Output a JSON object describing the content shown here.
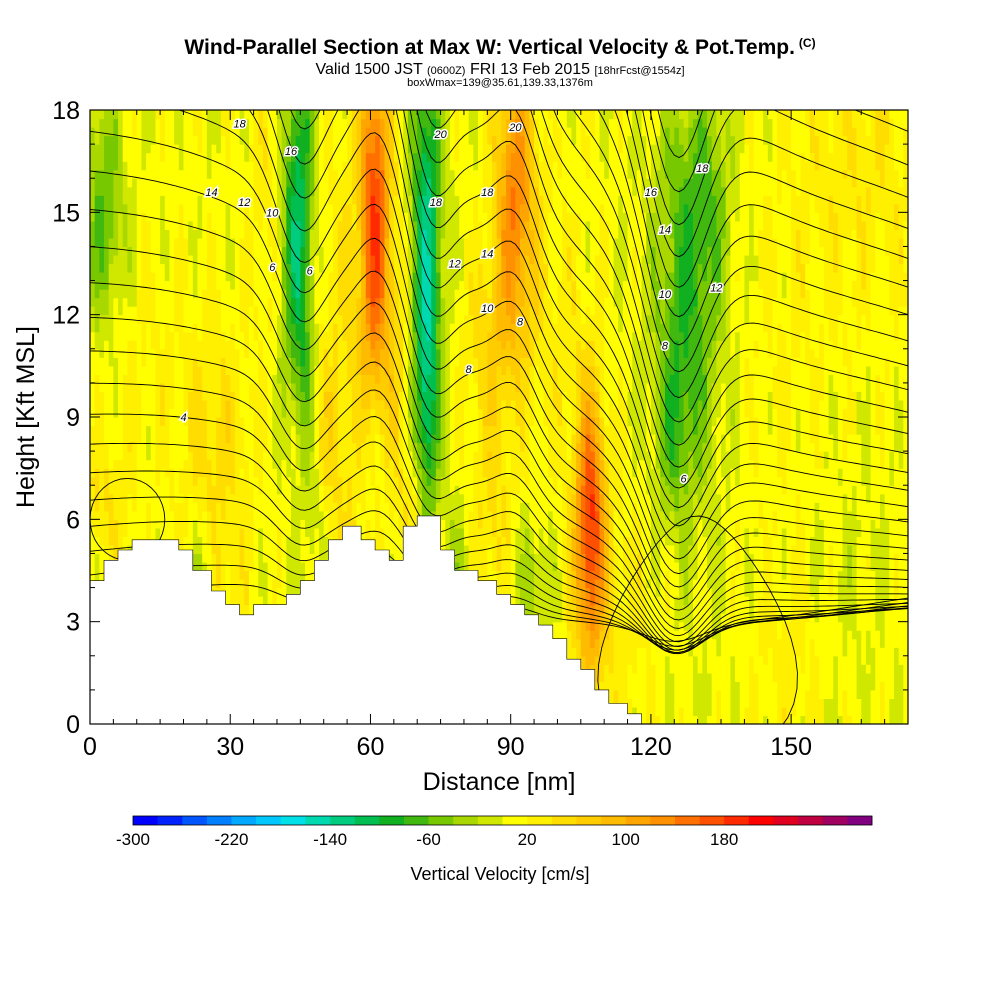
{
  "title": "Wind-Parallel Section at Max W: Vertical Velocity & Pot.Temp.",
  "copyright_mark": "(C)",
  "subtitle_main": "Valid 1500 JST",
  "subtitle_utc": "(0600Z)",
  "subtitle_date": "FRI 13 Feb 2015",
  "subtitle_fcst": "[18hrFcst@1554z]",
  "subtitle2": "boxWmax=139@35.61,139.33,1376m",
  "chart_data": {
    "type": "heatmap",
    "xlabel": "Distance [nm]",
    "ylabel": "Height [Kft MSL]",
    "xlim": [
      0,
      175
    ],
    "ylim": [
      0,
      18
    ],
    "x_ticks": [
      "0",
      "30",
      "60",
      "90",
      "120",
      "150"
    ],
    "y_ticks": [
      "0",
      "3",
      "6",
      "9",
      "12",
      "15",
      "18"
    ],
    "colorbar": {
      "label": "Vertical Velocity [cm/s]",
      "tick_labels": [
        "-300",
        "-220",
        "-140",
        "-60",
        "20",
        "100",
        "180"
      ],
      "colors": [
        "#0000ff",
        "#0022ff",
        "#0055ff",
        "#0080ff",
        "#00a8ff",
        "#00c8ff",
        "#00e0e8",
        "#00d8b0",
        "#00cc80",
        "#00be50",
        "#10b020",
        "#40b810",
        "#78c800",
        "#a8d800",
        "#d0e800",
        "#ffff00",
        "#fff000",
        "#ffdd00",
        "#ffcc00",
        "#ffbb00",
        "#ffa500",
        "#ff9000",
        "#ff7000",
        "#ff5000",
        "#ff2a00",
        "#ff0000",
        "#e00020",
        "#c00040",
        "#a00060",
        "#800080"
      ]
    },
    "terrain_profile": [
      [
        0,
        4.2
      ],
      [
        3,
        4.2
      ],
      [
        3,
        4.8
      ],
      [
        6,
        4.8
      ],
      [
        6,
        5.1
      ],
      [
        9,
        5.1
      ],
      [
        9,
        5.4
      ],
      [
        19,
        5.4
      ],
      [
        19,
        5.1
      ],
      [
        22,
        5.1
      ],
      [
        22,
        4.5
      ],
      [
        26,
        4.5
      ],
      [
        26,
        3.9
      ],
      [
        29,
        3.9
      ],
      [
        29,
        3.5
      ],
      [
        32,
        3.5
      ],
      [
        32,
        3.2
      ],
      [
        35,
        3.2
      ],
      [
        35,
        3.5
      ],
      [
        42,
        3.5
      ],
      [
        42,
        3.8
      ],
      [
        45,
        3.8
      ],
      [
        45,
        4.2
      ],
      [
        48,
        4.2
      ],
      [
        48,
        4.8
      ],
      [
        51,
        4.8
      ],
      [
        51,
        5.4
      ],
      [
        54,
        5.4
      ],
      [
        54,
        5.8
      ],
      [
        58,
        5.8
      ],
      [
        58,
        5.4
      ],
      [
        61,
        5.4
      ],
      [
        61,
        5.1
      ],
      [
        64,
        5.1
      ],
      [
        64,
        4.8
      ],
      [
        67,
        4.8
      ],
      [
        67,
        5.8
      ],
      [
        70,
        5.8
      ],
      [
        70,
        6.1
      ],
      [
        75,
        6.1
      ],
      [
        75,
        5.1
      ],
      [
        78,
        5.1
      ],
      [
        78,
        4.5
      ],
      [
        83,
        4.5
      ],
      [
        83,
        4.2
      ],
      [
        87,
        4.2
      ],
      [
        87,
        3.8
      ],
      [
        90,
        3.8
      ],
      [
        90,
        3.5
      ],
      [
        93,
        3.5
      ],
      [
        93,
        3.2
      ],
      [
        96,
        3.2
      ],
      [
        96,
        2.9
      ],
      [
        99,
        2.9
      ],
      [
        99,
        2.5
      ],
      [
        102,
        2.5
      ],
      [
        102,
        1.9
      ],
      [
        105,
        1.9
      ],
      [
        105,
        1.6
      ],
      [
        108,
        1.6
      ],
      [
        108,
        1.0
      ],
      [
        111,
        1.0
      ],
      [
        111,
        0.6
      ],
      [
        115,
        0.6
      ],
      [
        115,
        0.3
      ],
      [
        118,
        0.3
      ],
      [
        118,
        0
      ]
    ],
    "theta_contour_labels": [
      {
        "x": 20,
        "y": 9.0,
        "label": "4"
      },
      {
        "x": 39,
        "y": 13.4,
        "label": "6"
      },
      {
        "x": 47,
        "y": 13.3,
        "label": "6"
      },
      {
        "x": 39,
        "y": 15.0,
        "label": "10"
      },
      {
        "x": 33,
        "y": 15.3,
        "label": "12"
      },
      {
        "x": 26,
        "y": 15.6,
        "label": "14"
      },
      {
        "x": 43,
        "y": 16.8,
        "label": "16"
      },
      {
        "x": 32,
        "y": 17.6,
        "label": "18"
      },
      {
        "x": 75,
        "y": 17.3,
        "label": "20"
      },
      {
        "x": 91,
        "y": 17.5,
        "label": "20"
      },
      {
        "x": 74,
        "y": 15.3,
        "label": "18"
      },
      {
        "x": 85,
        "y": 15.6,
        "label": "18"
      },
      {
        "x": 85,
        "y": 13.8,
        "label": "14"
      },
      {
        "x": 78,
        "y": 13.5,
        "label": "12"
      },
      {
        "x": 85,
        "y": 12.2,
        "label": "10"
      },
      {
        "x": 92,
        "y": 11.8,
        "label": "8"
      },
      {
        "x": 81,
        "y": 10.4,
        "label": "8"
      },
      {
        "x": 120,
        "y": 15.6,
        "label": "16"
      },
      {
        "x": 131,
        "y": 16.3,
        "label": "18"
      },
      {
        "x": 123,
        "y": 14.5,
        "label": "14"
      },
      {
        "x": 123,
        "y": 12.6,
        "label": "10"
      },
      {
        "x": 134,
        "y": 12.8,
        "label": "12"
      },
      {
        "x": 123,
        "y": 11.1,
        "label": "8"
      },
      {
        "x": 127,
        "y": 7.2,
        "label": "6"
      }
    ]
  }
}
